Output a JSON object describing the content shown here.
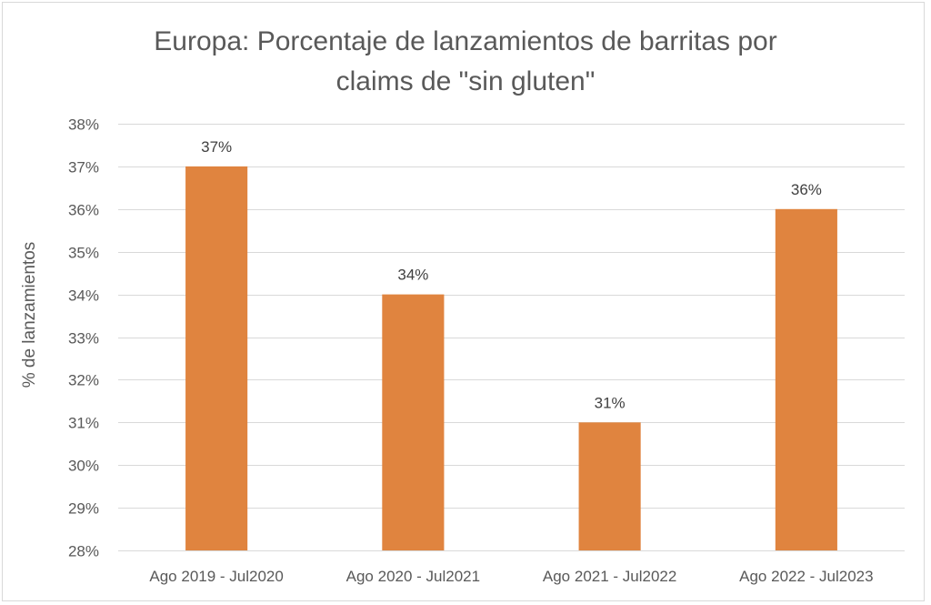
{
  "chart_data": {
    "type": "bar",
    "title_lines": [
      "Europa: Porcentaje de lanzamientos de barritas por",
      "claims de \"sin gluten\""
    ],
    "title": "Europa: Porcentaje de lanzamientos de barritas por claims de \"sin gluten\"",
    "xlabel": "",
    "ylabel": "% de lanzamientos",
    "categories": [
      "Ago 2019 - Jul2020",
      "Ago 2020 - Jul2021",
      "Ago 2021 - Jul2022",
      "Ago 2022 - Jul2023"
    ],
    "values": [
      37,
      34,
      31,
      36
    ],
    "data_labels": [
      "37%",
      "34%",
      "31%",
      "36%"
    ],
    "ylim": [
      28,
      38
    ],
    "yticks": [
      28,
      29,
      30,
      31,
      32,
      33,
      34,
      35,
      36,
      37,
      38
    ],
    "ytick_labels": [
      "28%",
      "29%",
      "30%",
      "31%",
      "32%",
      "33%",
      "34%",
      "35%",
      "36%",
      "37%",
      "38%"
    ],
    "grid": true,
    "legend": "none",
    "bar_color": "#E0843F",
    "grid_color": "#d9d9d9",
    "text_color": "#595959"
  }
}
